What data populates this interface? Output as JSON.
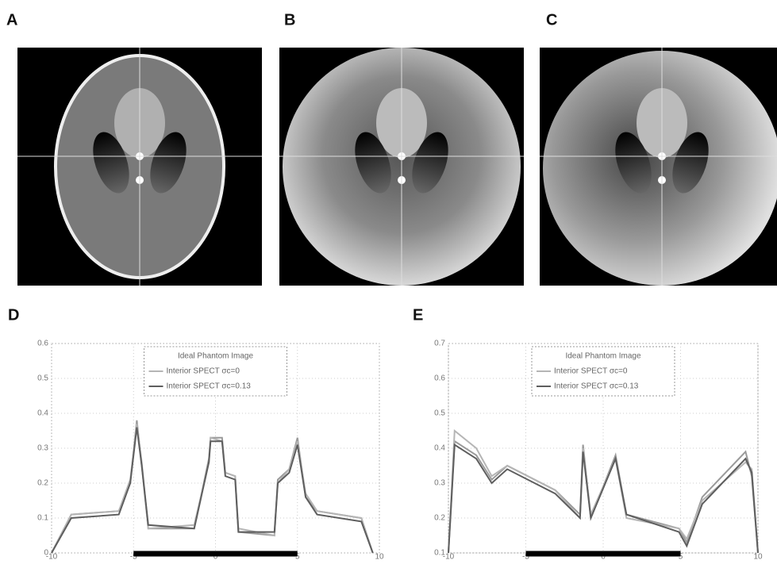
{
  "panels": {
    "labels": [
      "A",
      "B",
      "C"
    ]
  },
  "chart_data": [
    {
      "type": "line",
      "title": "D",
      "x": [
        -10,
        -8.8,
        -5.9,
        -5.2,
        -4.8,
        -4.5,
        -4.1,
        -1.3,
        -0.4,
        -0.3,
        0.4,
        0.6,
        1.2,
        1.4,
        3.6,
        3.8,
        4.5,
        5,
        5.5,
        6.2,
        8.9,
        9.6
      ],
      "series": [
        {
          "name": "Ideal Phantom Image",
          "color": "#9a9a9a",
          "values": [
            0,
            0.11,
            0.12,
            0.2,
            0.38,
            0.25,
            0.07,
            0.07,
            0.27,
            0.33,
            0.33,
            0.23,
            0.22,
            0.06,
            0.05,
            0.21,
            0.24,
            0.33,
            0.16,
            0.12,
            0.1,
            0
          ]
        },
        {
          "name": "Interior SPECT σc=0",
          "color": "#b5b5b5",
          "values": [
            0,
            0.11,
            0.12,
            0.21,
            0.37,
            0.26,
            0.07,
            0.08,
            0.26,
            0.33,
            0.32,
            0.23,
            0.22,
            0.07,
            0.05,
            0.2,
            0.24,
            0.32,
            0.17,
            0.12,
            0.1,
            0
          ]
        },
        {
          "name": "Interior SPECT σc=0.13",
          "color": "#5e5e5e",
          "values": [
            0,
            0.1,
            0.11,
            0.2,
            0.36,
            0.25,
            0.08,
            0.07,
            0.26,
            0.32,
            0.32,
            0.22,
            0.21,
            0.06,
            0.06,
            0.2,
            0.23,
            0.31,
            0.16,
            0.11,
            0.09,
            0
          ]
        }
      ],
      "xlim": [
        -10,
        10
      ],
      "xticks": [
        -10,
        -5,
        0,
        5,
        10
      ],
      "ylim": [
        0,
        0.6
      ],
      "yticks": [
        0,
        0.1,
        0.2,
        0.3,
        0.4,
        0.5,
        0.6
      ],
      "grid": true
    },
    {
      "type": "line",
      "title": "E",
      "x": [
        -10,
        -9.6,
        -8.2,
        -7.2,
        -6.2,
        -3.1,
        -1.5,
        -1.3,
        -0.8,
        0.8,
        1.5,
        4.9,
        5.4,
        6.4,
        9.2,
        9.6,
        10
      ],
      "series": [
        {
          "name": "Ideal Phantom Image",
          "color": "#9a9a9a",
          "values": [
            0.1,
            0.42,
            0.38,
            0.31,
            0.35,
            0.28,
            0.21,
            0.41,
            0.2,
            0.38,
            0.21,
            0.17,
            0.13,
            0.26,
            0.39,
            0.32,
            0.1
          ]
        },
        {
          "name": "Interior SPECT σc=0",
          "color": "#b5b5b5",
          "values": [
            0.1,
            0.45,
            0.4,
            0.32,
            0.35,
            0.28,
            0.2,
            0.4,
            0.21,
            0.37,
            0.2,
            0.17,
            0.14,
            0.25,
            0.36,
            0.34,
            0.1
          ]
        },
        {
          "name": "Interior SPECT σc=0.13",
          "color": "#5e5e5e",
          "values": [
            0.1,
            0.41,
            0.37,
            0.3,
            0.34,
            0.27,
            0.2,
            0.39,
            0.2,
            0.37,
            0.21,
            0.16,
            0.12,
            0.24,
            0.37,
            0.33,
            0.1
          ]
        }
      ],
      "xlim": [
        -10,
        10
      ],
      "xticks": [
        -10,
        -5,
        0,
        5,
        10
      ],
      "ylim": [
        0.1,
        0.7
      ],
      "yticks": [
        0.1,
        0.2,
        0.3,
        0.4,
        0.5,
        0.6,
        0.7
      ],
      "grid": true
    }
  ]
}
